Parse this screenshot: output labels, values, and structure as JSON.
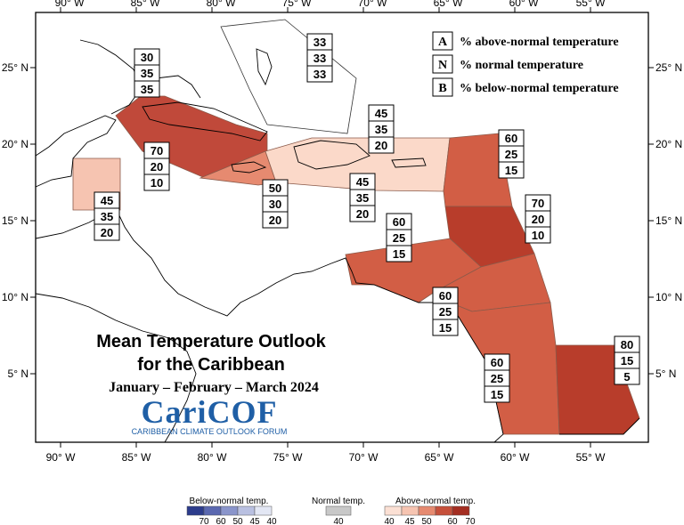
{
  "axes": {
    "lon_labels": [
      "90° W",
      "85° W",
      "80° W",
      "75° W",
      "70° W",
      "65° W",
      "60° W",
      "55° W"
    ],
    "lat_labels": [
      "25° N",
      "20° N",
      "15° N",
      "10° N",
      "5° N"
    ]
  },
  "key": {
    "items": [
      {
        "letter": "A",
        "label": "% above-normal temperature"
      },
      {
        "letter": "N",
        "label": "% normal temperature"
      },
      {
        "letter": "B",
        "label": "% below-normal temperature"
      }
    ]
  },
  "regions": [
    {
      "name": "bahamas",
      "color": "#ffffff",
      "probs": [
        "33",
        "33",
        "33"
      ]
    },
    {
      "name": "cuba-north",
      "color": "#ffffff",
      "probs": [
        "30",
        "35",
        "35"
      ]
    },
    {
      "name": "cuba",
      "color": "#c0493a",
      "probs": [
        "70",
        "20",
        "10"
      ]
    },
    {
      "name": "belize",
      "color": "#f6c4b1",
      "probs": [
        "45",
        "35",
        "20"
      ]
    },
    {
      "name": "jamaica",
      "color": "#e68a70",
      "probs": [
        "50",
        "30",
        "20"
      ]
    },
    {
      "name": "hispaniola-pr",
      "color": "#fbd9c9",
      "probs": [
        "45",
        "35",
        "20"
      ]
    },
    {
      "name": "hispaniola-south",
      "color": "#fbd9c9",
      "probs": [
        "45",
        "35",
        "20"
      ]
    },
    {
      "name": "leeward",
      "color": "#d25e45",
      "probs": [
        "60",
        "25",
        "15"
      ]
    },
    {
      "name": "windward",
      "color": "#b83d2b",
      "probs": [
        "70",
        "20",
        "10"
      ]
    },
    {
      "name": "abc-islands",
      "color": "#d25e45",
      "probs": [
        "60",
        "25",
        "15"
      ]
    },
    {
      "name": "trinidad",
      "color": "#d25e45",
      "probs": [
        "60",
        "25",
        "15"
      ]
    },
    {
      "name": "guyana",
      "color": "#d25e45",
      "probs": [
        "60",
        "25",
        "15"
      ]
    },
    {
      "name": "suriname-guiana",
      "color": "#b83d2b",
      "probs": [
        "80",
        "15",
        "5"
      ]
    }
  ],
  "title": {
    "line1": "Mean Temperature Outlook",
    "line2": "for the Caribbean",
    "line3": "January – February – March 2024"
  },
  "logo": {
    "name": "CariCOF",
    "sub": "CARIBBEAN CLIMATE OUTLOOK FORUM"
  },
  "legend": {
    "below": {
      "title": "Below-normal temp.",
      "ticks": [
        "70",
        "60",
        "50",
        "45",
        "40"
      ],
      "colors": [
        "#2c3c8c",
        "#5a68b0",
        "#8a95cb",
        "#b9c0e1",
        "#e3e7f4"
      ]
    },
    "normal": {
      "title": "Normal temp.",
      "ticks": [
        "40"
      ],
      "colors": [
        "#c8c8c8"
      ]
    },
    "above": {
      "title": "Above-normal temp.",
      "ticks": [
        "40",
        "45",
        "50",
        "60",
        "70"
      ],
      "colors": [
        "#fbe0d4",
        "#f6c4b1",
        "#e68a70",
        "#c6503b",
        "#a42e22"
      ]
    }
  }
}
